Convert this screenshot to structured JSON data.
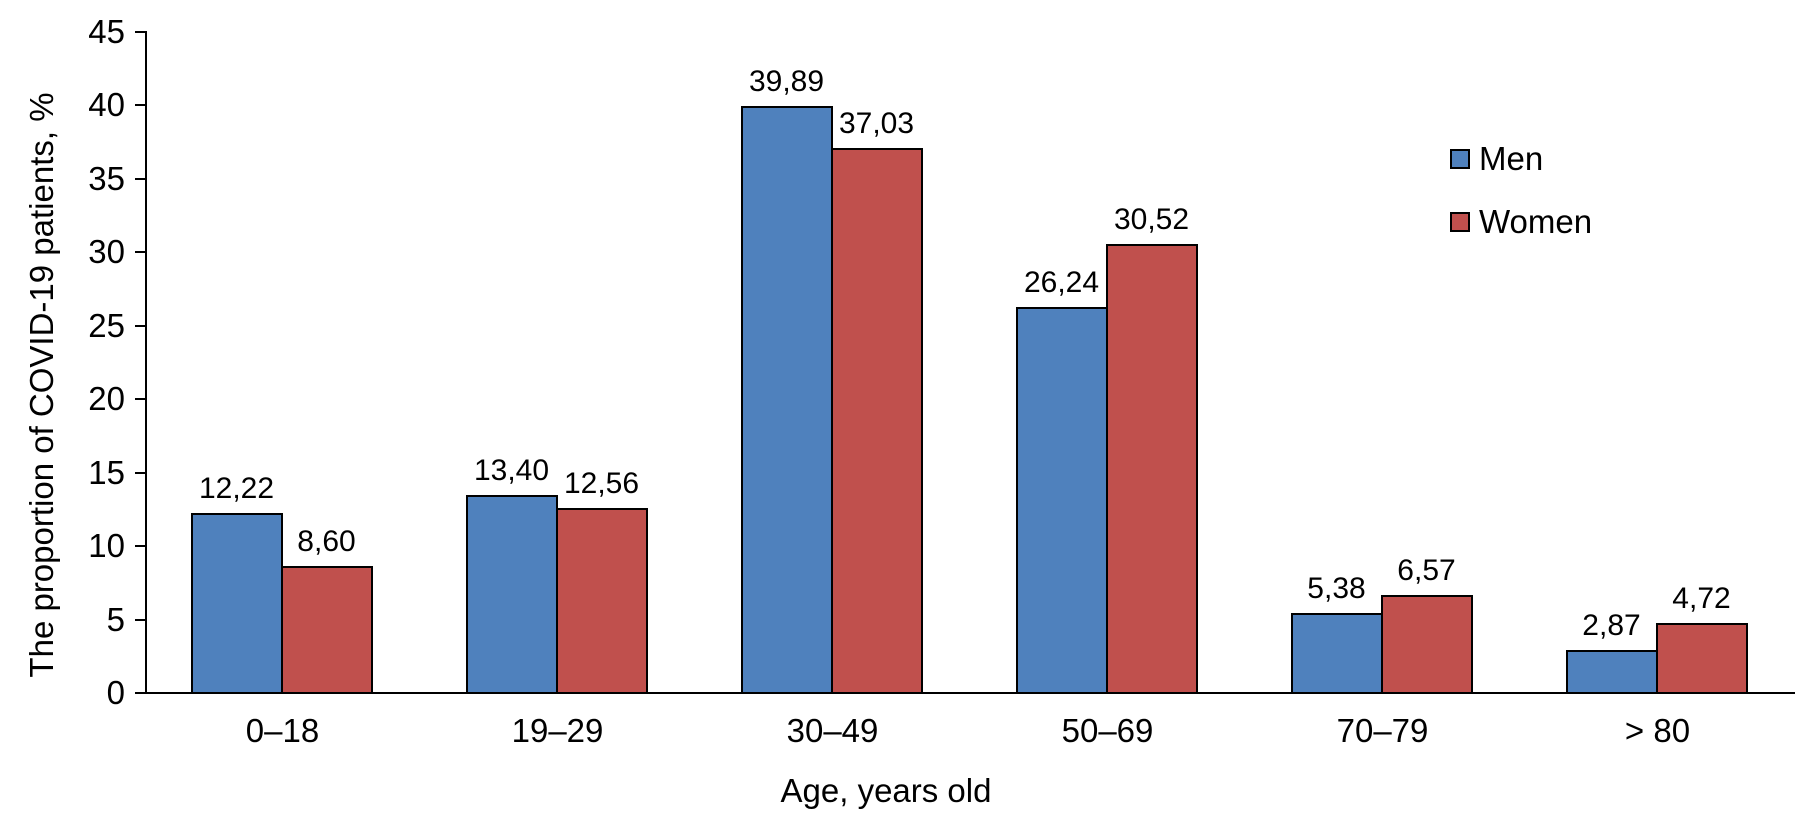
{
  "chart_data": {
    "type": "bar",
    "title": "",
    "categories": [
      "0–18",
      "19–29",
      "30–49",
      "50–69",
      "70–79",
      "> 80"
    ],
    "series": [
      {
        "name": "Men",
        "color": "#4F81BD",
        "values": [
          12.22,
          13.4,
          39.89,
          26.24,
          5.38,
          2.87
        ],
        "labels": [
          "12,22",
          "13,40",
          "39,89",
          "26,24",
          "5,38",
          "2,87"
        ]
      },
      {
        "name": "Women",
        "color": "#C0504D",
        "values": [
          8.6,
          12.56,
          37.03,
          30.52,
          6.57,
          4.72
        ],
        "labels": [
          "8,60",
          "12,56",
          "37,03",
          "30,52",
          "6,57",
          "4,72"
        ]
      }
    ],
    "xlabel": "Age, years old",
    "ylabel": "The proportion of COVID-19 patients, %",
    "ylim": [
      0,
      45
    ],
    "yticks": [
      0,
      5,
      10,
      15,
      20,
      25,
      30,
      35,
      40,
      45
    ],
    "grid": false,
    "legend_position": "right",
    "bar_border_color": "#000000",
    "axis_color": "#000000",
    "text_color": "#000000",
    "background": "#FFFFFF",
    "decimal_separator": ","
  }
}
